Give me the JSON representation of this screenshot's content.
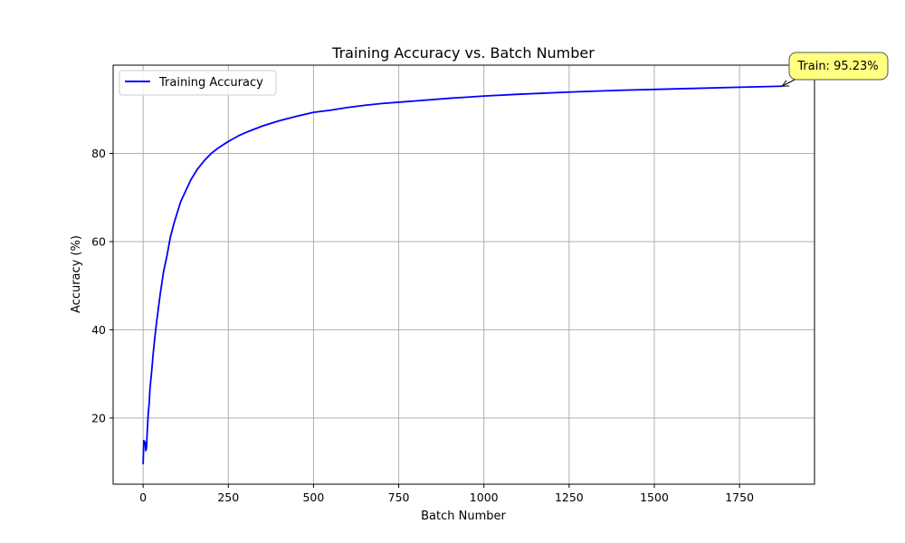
{
  "chart_data": {
    "type": "line",
    "title": "Training Accuracy vs. Batch Number",
    "xlabel": "Batch Number",
    "ylabel": "Accuracy (%)",
    "xlim": [
      -88,
      1970
    ],
    "ylim": [
      5,
      100
    ],
    "xticks": [
      0,
      250,
      500,
      750,
      1000,
      1250,
      1500,
      1750
    ],
    "yticks": [
      20,
      40,
      60,
      80
    ],
    "grid": true,
    "legend_position": "top-left",
    "series": [
      {
        "name": "Training Accuracy",
        "color": "#0000ff",
        "x": [
          0,
          2,
          4,
          6,
          8,
          10,
          12,
          15,
          18,
          20,
          25,
          30,
          35,
          40,
          50,
          60,
          70,
          80,
          90,
          100,
          110,
          125,
          140,
          160,
          180,
          200,
          220,
          250,
          280,
          310,
          350,
          400,
          450,
          500,
          550,
          600,
          650,
          700,
          750,
          800,
          900,
          1000,
          1100,
          1250,
          1400,
          1500,
          1600,
          1750,
          1875
        ],
        "y": [
          9.5,
          14.9,
          14.7,
          14.3,
          12.6,
          13.3,
          16.8,
          21.0,
          23.5,
          26.5,
          30.5,
          35.0,
          38.7,
          42.0,
          48.0,
          53.2,
          56.8,
          61.0,
          64.0,
          66.5,
          69.0,
          71.5,
          74.0,
          76.5,
          78.4,
          80.0,
          81.2,
          82.7,
          84.0,
          85.0,
          86.2,
          87.4,
          88.4,
          89.3,
          89.8,
          90.4,
          90.9,
          91.3,
          91.6,
          91.9,
          92.5,
          93.0,
          93.4,
          93.9,
          94.3,
          94.5,
          94.7,
          95.0,
          95.23
        ]
      }
    ],
    "annotation": {
      "text": "Train: 95.23%",
      "x": 1875,
      "y": 95.23,
      "box_color": "#ffff80"
    }
  }
}
